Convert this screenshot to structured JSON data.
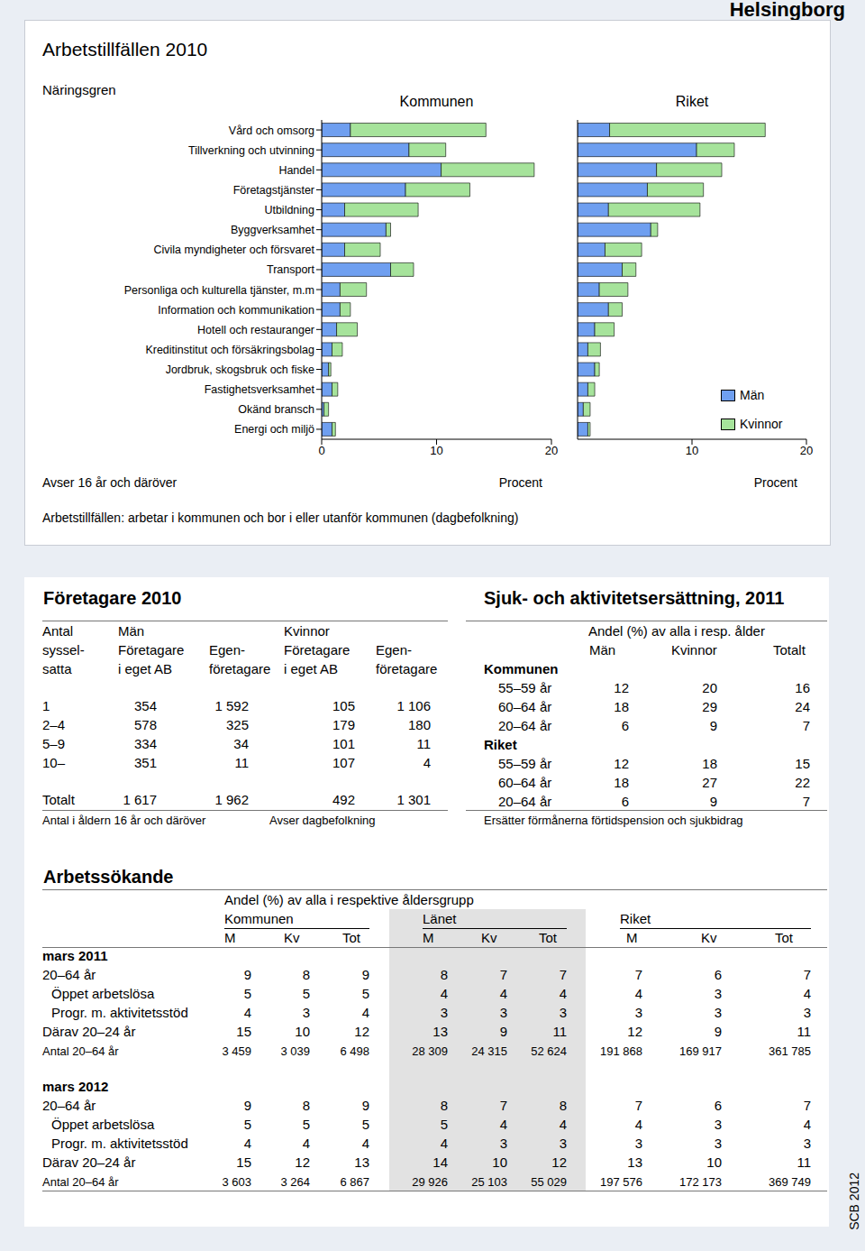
{
  "header": {
    "region": "Helsingborg",
    "source": "SCB 2012"
  },
  "employment": {
    "title": "Arbetstillfällen 2010",
    "category_heading": "Näringsgren",
    "note": "Avser 16 år och däröver",
    "definition": "Arbetstillfällen: arbetar i kommunen och bor i eller utanför kommunen (dagbefolkning)"
  },
  "chart_data": [
    {
      "type": "bar",
      "title": "Kommunen",
      "orientation": "horizontal",
      "stacked": true,
      "xlabel": "Procent",
      "xlim": [
        0,
        20
      ],
      "xticks": [
        0,
        10,
        20
      ],
      "categories": [
        "Vård och omsorg",
        "Tillverkning och utvinning",
        "Handel",
        "Företagstjänster",
        "Utbildning",
        "Byggverksamhet",
        "Civila myndigheter och försvaret",
        "Transport",
        "Personliga och kulturella tjänster, m.m",
        "Information och kommunikation",
        "Hotell och restauranger",
        "Kreditinstitut och försäkringsbolag",
        "Jordbruk, skogsbruk och fiske",
        "Fastighetsverksamhet",
        "Okänd bransch",
        "Energi och miljö"
      ],
      "series": [
        {
          "name": "Män",
          "color": "#6f9ff0",
          "values": [
            2.5,
            7.6,
            10.4,
            7.3,
            2.0,
            5.6,
            2.0,
            6.0,
            1.6,
            1.6,
            1.3,
            0.9,
            0.6,
            0.9,
            0.2,
            0.9
          ]
        },
        {
          "name": "Kvinnor",
          "color": "#a6e39b",
          "values": [
            11.8,
            3.2,
            8.1,
            5.6,
            6.4,
            0.4,
            3.1,
            2.0,
            2.3,
            0.9,
            1.8,
            0.9,
            0.2,
            0.5,
            0.4,
            0.3
          ]
        }
      ]
    },
    {
      "type": "bar",
      "title": "Riket",
      "orientation": "horizontal",
      "stacked": true,
      "xlabel": "Procent",
      "xlim": [
        0,
        20
      ],
      "xticks": [
        0,
        10,
        20
      ],
      "tick_labels": "x",
      "legend": "lower right",
      "categories": [
        "Vård och omsorg",
        "Tillverkning och utvinning",
        "Handel",
        "Företagstjänster",
        "Utbildning",
        "Byggverksamhet",
        "Civila myndigheter och försvaret",
        "Transport",
        "Personliga och kulturella tjänster, m.m",
        "Information och kommunikation",
        "Hotell och restauranger",
        "Kreditinstitut och försäkringsbolag",
        "Jordbruk, skogsbruk och fiske",
        "Fastighetsverksamhet",
        "Okänd bransch",
        "Energi och miljö"
      ],
      "series": [
        {
          "name": "Män",
          "color": "#6f9ff0",
          "values": [
            2.8,
            10.4,
            6.9,
            6.1,
            2.7,
            6.4,
            2.4,
            3.9,
            1.9,
            2.7,
            1.5,
            0.9,
            1.5,
            0.9,
            0.5,
            0.9
          ]
        },
        {
          "name": "Kvinnor",
          "color": "#a6e39b",
          "values": [
            13.6,
            3.3,
            5.7,
            4.9,
            8.0,
            0.6,
            3.2,
            1.2,
            2.5,
            1.2,
            1.7,
            1.1,
            0.4,
            0.6,
            0.6,
            0.2
          ]
        }
      ]
    }
  ],
  "entrepreneurs": {
    "title": "Företagare 2010",
    "row_heading": [
      "Antal",
      "syssel-",
      "satta"
    ],
    "groups": [
      {
        "name": "Män",
        "columns": [
          [
            "Företagare",
            "i eget AB"
          ],
          [
            "Egen-",
            "företagare"
          ]
        ]
      },
      {
        "name": "Kvinnor",
        "columns": [
          [
            "Företagare",
            "i eget AB"
          ],
          [
            "Egen-",
            "företagare"
          ]
        ]
      }
    ],
    "rows": [
      {
        "label": "1",
        "values": [
          "354",
          "1 592",
          "105",
          "1 106"
        ]
      },
      {
        "label": "2–4",
        "values": [
          "578",
          "325",
          "179",
          "180"
        ]
      },
      {
        "label": "5–9",
        "values": [
          "334",
          "34",
          "101",
          "11"
        ]
      },
      {
        "label": "10–",
        "values": [
          "351",
          "11",
          "107",
          "4"
        ]
      }
    ],
    "total": {
      "label": "Totalt",
      "values": [
        "1 617",
        "1 962",
        "492",
        "1 301"
      ]
    },
    "notes": [
      "Antal i åldern 16 år och däröver",
      "Avser dagbefolkning"
    ]
  },
  "sickness": {
    "title": "Sjuk- och aktivitetsersättning, 2011",
    "unit_heading": "Andel (%) av alla i resp. ålder",
    "columns": [
      "Män",
      "Kvinnor",
      "Totalt"
    ],
    "groups": [
      {
        "name": "Kommunen",
        "rows": [
          {
            "label": "55–59 år",
            "values": [
              12,
              20,
              16
            ]
          },
          {
            "label": "60–64 år",
            "values": [
              18,
              29,
              24
            ]
          },
          {
            "label": "20–64 år",
            "values": [
              6,
              9,
              7
            ]
          }
        ]
      },
      {
        "name": "Riket",
        "rows": [
          {
            "label": "55–59 år",
            "values": [
              12,
              18,
              15
            ]
          },
          {
            "label": "60–64 år",
            "values": [
              18,
              27,
              22
            ]
          },
          {
            "label": "20–64 år",
            "values": [
              6,
              9,
              7
            ]
          }
        ]
      }
    ],
    "note": "Ersätter förmånerna förtidspension och sjukbidrag"
  },
  "jobseekers": {
    "title": "Arbetssökande",
    "unit_heading": "Andel (%) av alla i respektive åldersgrupp",
    "regions": [
      "Kommunen",
      "Länet",
      "Riket"
    ],
    "columns": [
      "M",
      "Kv",
      "Tot"
    ],
    "periods": [
      {
        "name": "mars 2011",
        "rows": [
          {
            "label": "20–64 år",
            "values": [
              "9",
              "8",
              "9",
              "8",
              "7",
              "7",
              "7",
              "6",
              "7"
            ]
          },
          {
            "label": "Öppet arbetslösa",
            "values": [
              "5",
              "5",
              "5",
              "4",
              "4",
              "4",
              "4",
              "3",
              "4"
            ]
          },
          {
            "label": "Progr. m. aktivitetsstöd",
            "values": [
              "4",
              "3",
              "4",
              "3",
              "3",
              "3",
              "3",
              "3",
              "3"
            ]
          },
          {
            "label": "Därav 20–24 år",
            "values": [
              "15",
              "10",
              "12",
              "13",
              "9",
              "11",
              "12",
              "9",
              "11"
            ]
          },
          {
            "label": "Antal 20–64 år",
            "values": [
              "3 459",
              "3 039",
              "6 498",
              "28 309",
              "24 315",
              "52 624",
              "191 868",
              "169 917",
              "361 785"
            ]
          }
        ]
      },
      {
        "name": "mars 2012",
        "rows": [
          {
            "label": "20–64 år",
            "values": [
              "9",
              "8",
              "9",
              "8",
              "7",
              "8",
              "7",
              "6",
              "7"
            ]
          },
          {
            "label": "Öppet arbetslösa",
            "values": [
              "5",
              "5",
              "5",
              "5",
              "4",
              "4",
              "4",
              "3",
              "4"
            ]
          },
          {
            "label": "Progr. m. aktivitetsstöd",
            "values": [
              "4",
              "4",
              "4",
              "4",
              "3",
              "3",
              "3",
              "3",
              "3"
            ]
          },
          {
            "label": "Därav 20–24 år",
            "values": [
              "15",
              "12",
              "13",
              "14",
              "10",
              "12",
              "13",
              "10",
              "11"
            ]
          },
          {
            "label": "Antal 20–64 år",
            "values": [
              "3 603",
              "3 264",
              "6 867",
              "29 926",
              "25 103",
              "55 029",
              "197 576",
              "172 173",
              "369 749"
            ]
          }
        ]
      }
    ]
  }
}
